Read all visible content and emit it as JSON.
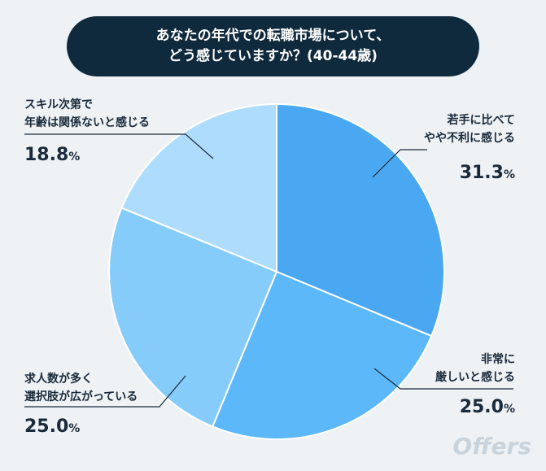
{
  "title": {
    "line1": "あなたの年代での転職市場について、",
    "line2": "どう感じていますか？(40-44歳)"
  },
  "logo": "Offers",
  "chart_data": {
    "type": "pie",
    "title": "あなたの年代での転職市場について、どう感じていますか？(40-44歳)",
    "slices": [
      {
        "label_line1": "若手に比べて",
        "label_line2": "やや不利に感じる",
        "value": 31.3,
        "value_text": "31.3",
        "color": "#4aa8f2"
      },
      {
        "label_line1": "非常に",
        "label_line2": "厳しいと感じる",
        "value": 25.0,
        "value_text": "25.0",
        "color": "#5cb8f8"
      },
      {
        "label_line1": "求人数が多く",
        "label_line2": "選択肢が広がっている",
        "value": 25.0,
        "value_text": "25.0",
        "color": "#86ccfb"
      },
      {
        "label_line1": "スキル次第で",
        "label_line2": "年齢は関係ないと感じる",
        "value": 18.8,
        "value_text": "18.8",
        "color": "#aedcfc"
      }
    ],
    "unit": "%"
  }
}
